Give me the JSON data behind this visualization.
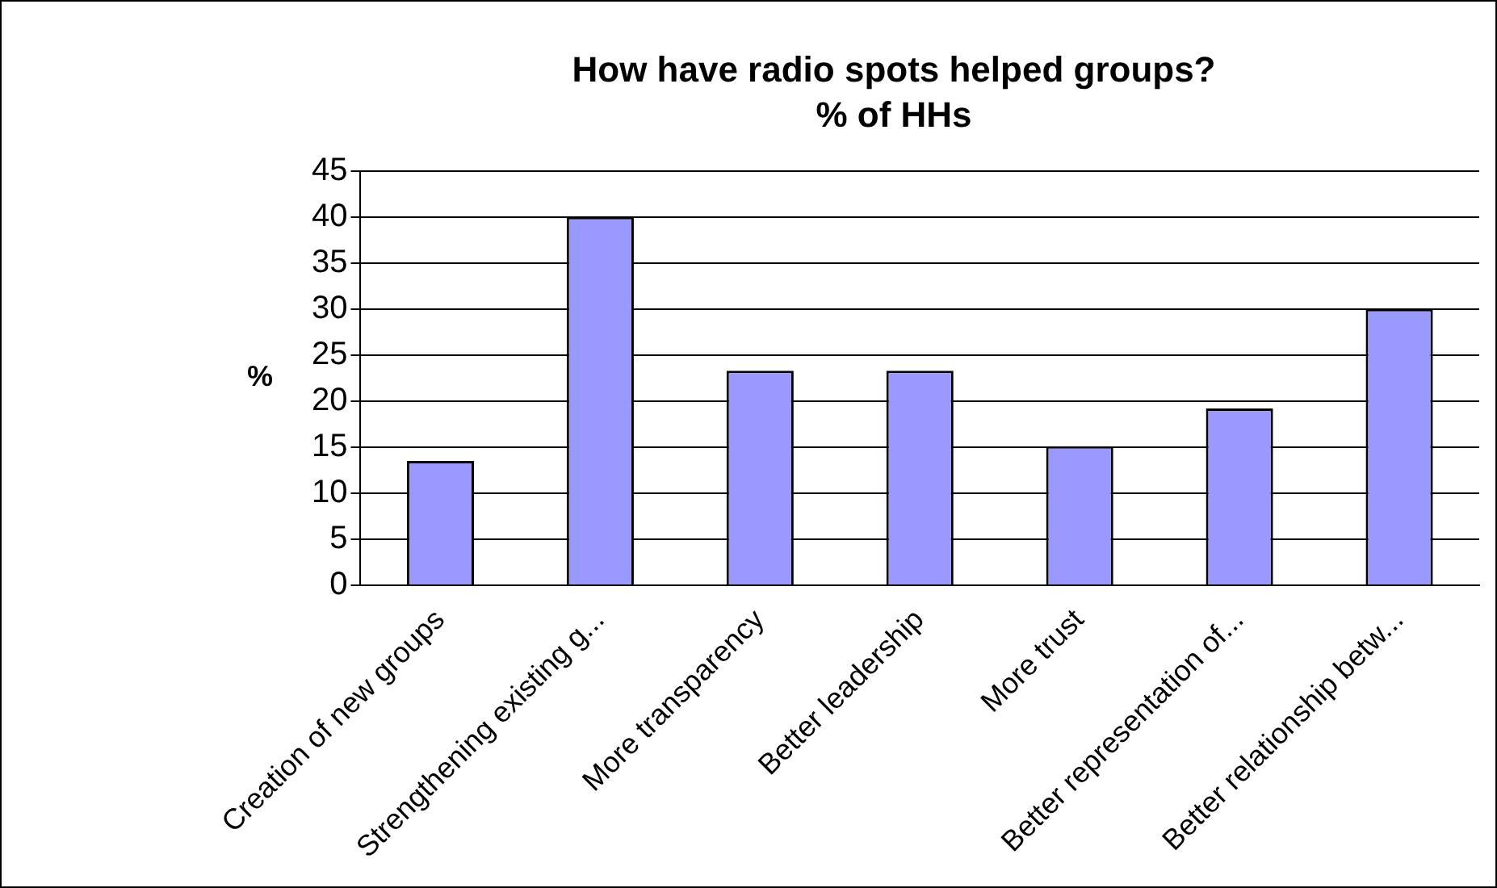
{
  "chart_data": {
    "type": "bar",
    "title": "How have radio spots helped groups?",
    "subtitle": "% of HHs",
    "ylabel": "%",
    "categories": [
      "Creation of new groups",
      "Strengthening existing g...",
      "More transparency",
      "Better leadership",
      "More trust",
      "Better representation of...",
      "Better relationship betw..."
    ],
    "values": [
      13.5,
      40,
      23.3,
      23.3,
      15.1,
      19.2,
      30
    ],
    "color": "#9999ff",
    "ylim": [
      0,
      45
    ],
    "yticks": [
      0,
      5,
      10,
      15,
      20,
      25,
      30,
      35,
      40,
      45
    ],
    "grid": "y",
    "legend": false
  }
}
